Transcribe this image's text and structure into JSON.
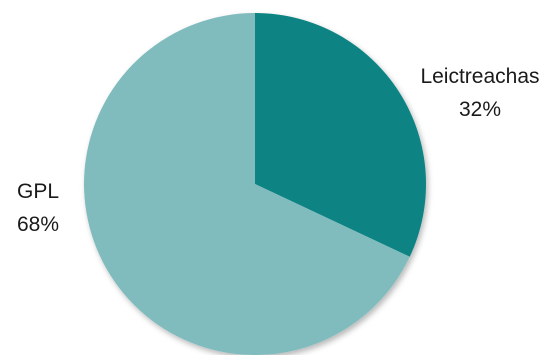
{
  "chart_data": {
    "type": "pie",
    "title": "",
    "slices": [
      {
        "name": "Leictreachas",
        "value": 32,
        "label": "32%",
        "color": "#0a8383"
      },
      {
        "name": "GPL",
        "value": 68,
        "label": "68%",
        "color": "#80bcbe"
      }
    ],
    "start_angle": "12 o'clock",
    "direction": "clockwise",
    "legend": "none",
    "shadow": true
  }
}
